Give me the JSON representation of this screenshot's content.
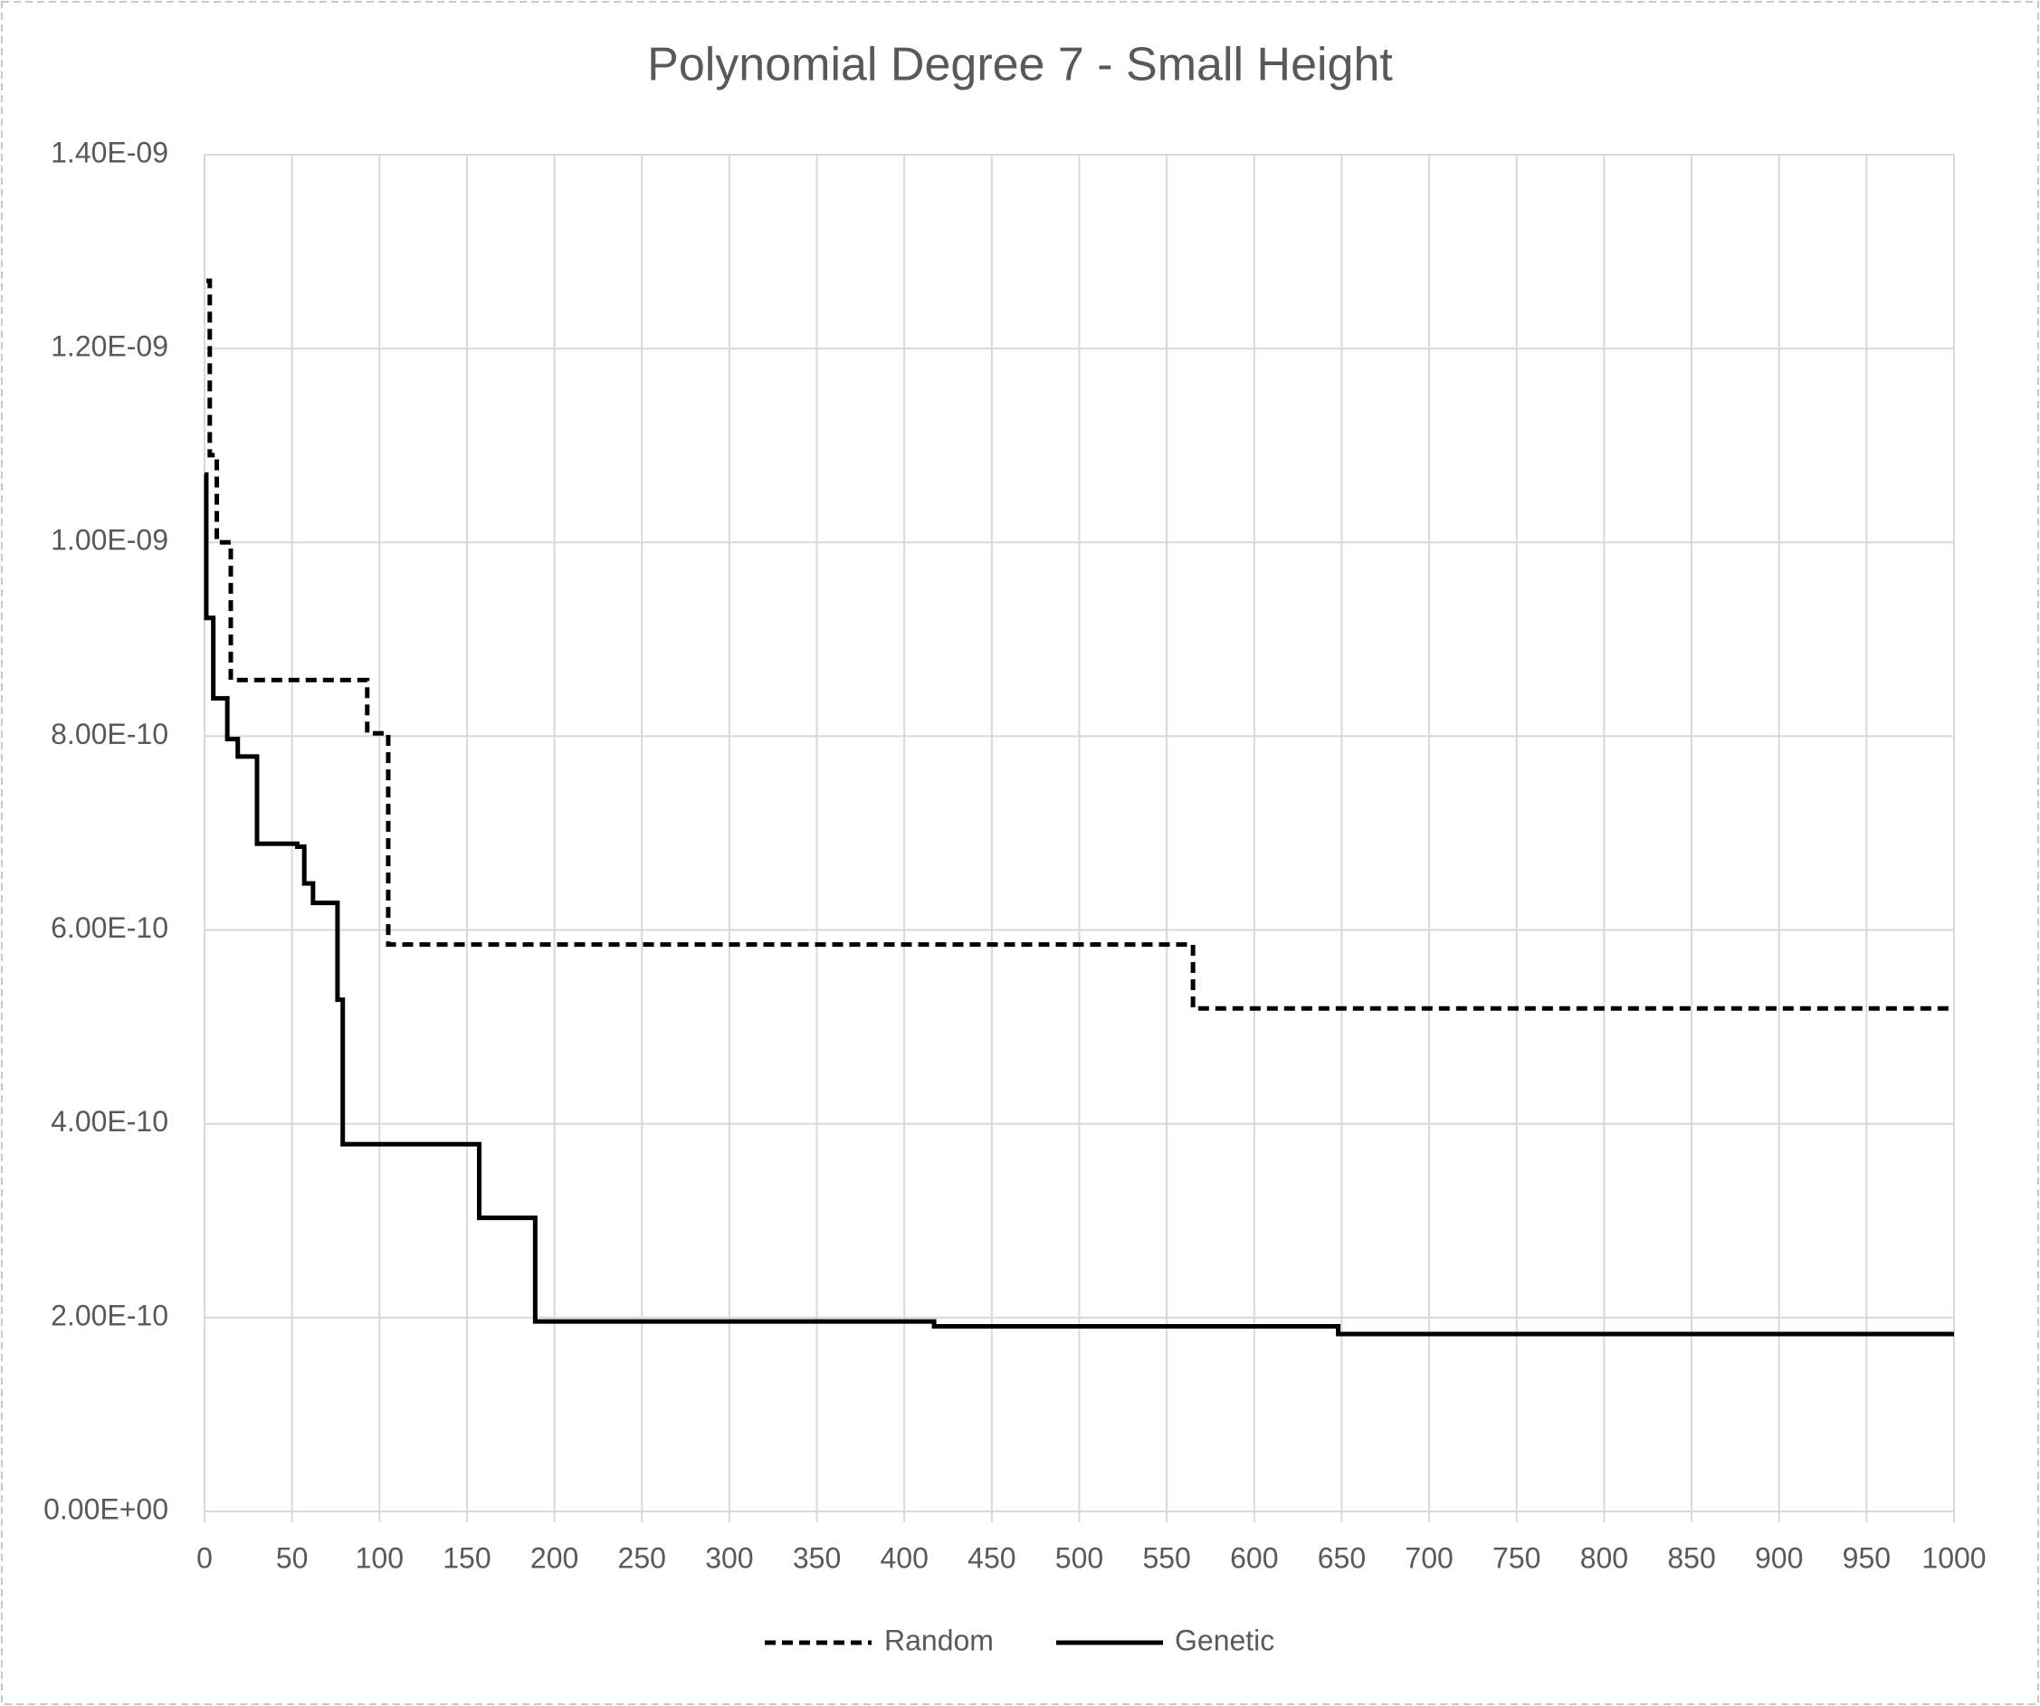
{
  "chart_data": {
    "type": "line",
    "title": "Polynomial Degree 7 - Small Height",
    "xlim": [
      0,
      1000
    ],
    "xticks": [
      0,
      50,
      100,
      150,
      200,
      250,
      300,
      350,
      400,
      450,
      500,
      550,
      600,
      650,
      700,
      750,
      800,
      850,
      900,
      950,
      1000
    ],
    "ylim": [
      0,
      1.4e-09
    ],
    "yticks": [
      {
        "value": 0,
        "label": "0.00E+00"
      },
      {
        "value": 2e-10,
        "label": "2.00E-10"
      },
      {
        "value": 4e-10,
        "label": "4.00E-10"
      },
      {
        "value": 6e-10,
        "label": "6.00E-10"
      },
      {
        "value": 8e-10,
        "label": "8.00E-10"
      },
      {
        "value": 1e-09,
        "label": "1.00E-09"
      },
      {
        "value": 1.2e-09,
        "label": "1.20E-09"
      },
      {
        "value": 1.4e-09,
        "label": "1.40E-09"
      }
    ],
    "grid": true,
    "legend": "bottom",
    "series": [
      {
        "name": "Random",
        "color": "#000000",
        "line_style": "dashed",
        "x": [
          1,
          3,
          3,
          7,
          7,
          15,
          15,
          93,
          93,
          105,
          105,
          565,
          565,
          1000
        ],
        "values": [
          1.27e-09,
          1.27e-09,
          1.09e-09,
          1.09e-09,
          1e-09,
          1e-09,
          8.58e-10,
          8.58e-10,
          8.03e-10,
          8.03e-10,
          5.85e-10,
          5.85e-10,
          5.19e-10,
          5.19e-10
        ]
      },
      {
        "name": "Genetic",
        "color": "#000000",
        "line_style": "solid",
        "x": [
          0,
          1,
          1,
          5,
          5,
          13,
          13,
          19,
          19,
          30,
          30,
          53,
          53,
          57,
          57,
          62,
          62,
          76,
          76,
          79,
          79,
          157,
          157,
          189,
          189,
          417,
          417,
          648,
          648,
          1000
        ],
        "values": [
          1.07e-09,
          1.07e-09,
          9.22e-10,
          9.22e-10,
          8.39e-10,
          8.39e-10,
          7.97e-10,
          7.97e-10,
          7.79e-10,
          7.79e-10,
          6.89e-10,
          6.89e-10,
          6.86e-10,
          6.86e-10,
          6.48e-10,
          6.48e-10,
          6.28e-10,
          6.28e-10,
          5.28e-10,
          5.28e-10,
          3.79e-10,
          3.79e-10,
          3.03e-10,
          3.03e-10,
          1.96e-10,
          1.96e-10,
          1.91e-10,
          1.91e-10,
          1.83e-10,
          1.83e-10
        ]
      }
    ]
  }
}
